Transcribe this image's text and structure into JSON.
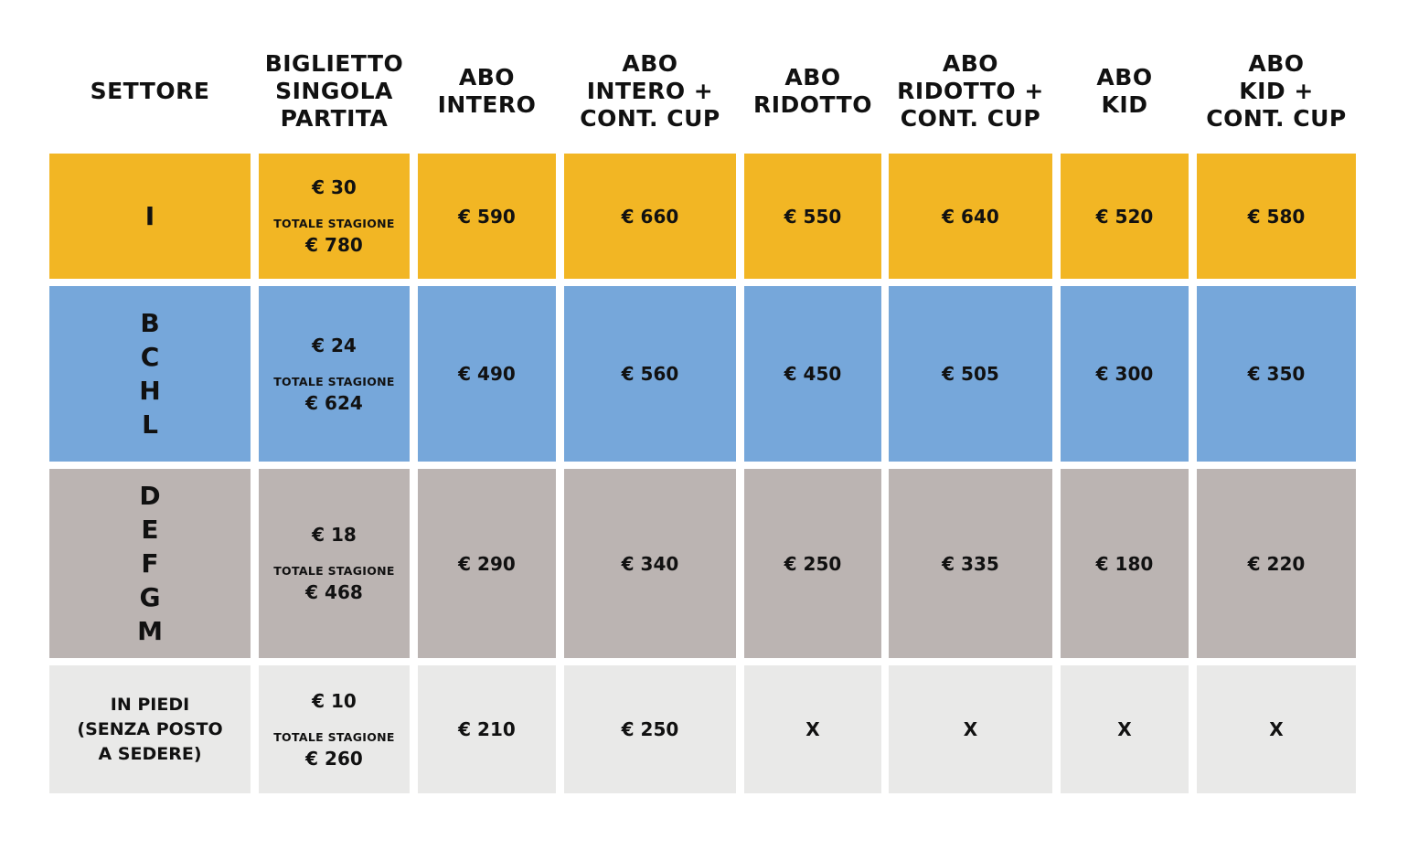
{
  "headers": [
    "SETTORE",
    "BIGLIETTO\nSINGOLA\nPARTITA",
    "ABO\nINTERO",
    "ABO\nINTERO +\nCONT. CUP",
    "ABO\nRIDOTTO",
    "ABO\nRIDOTTO +\nCONT. CUP",
    "ABO\nKID",
    "ABO\nKID +\nCONT. CUP"
  ],
  "season_label": "TOTALE STAGIONE",
  "colors": {
    "row1": "#F2B624",
    "row2": "#76A7DA",
    "row3": "#BBB4B2",
    "row4": "#E9E9E8",
    "text": "#111111",
    "separator": "#FFFFFF"
  },
  "rows": [
    {
      "sector": "I",
      "sector_style": "letters",
      "single": "€ 30",
      "season_total": "€ 780",
      "prices": [
        "€ 590",
        "€ 660",
        "€ 550",
        "€ 640",
        "€ 520",
        "€ 580"
      ]
    },
    {
      "sector": "B\nC\nH\nL",
      "sector_style": "letters",
      "single": "€ 24",
      "season_total": "€ 624",
      "prices": [
        "€ 490",
        "€ 560",
        "€ 450",
        "€ 505",
        "€ 300",
        "€ 350"
      ]
    },
    {
      "sector": "D\nE\nF\nG\nM",
      "sector_style": "letters",
      "single": "€ 18",
      "season_total": "€ 468",
      "prices": [
        "€ 290",
        "€ 340",
        "€ 250",
        "€ 335",
        "€ 180",
        "€ 220"
      ]
    },
    {
      "sector": "IN PIEDI\n(SENZA POSTO\nA SEDERE)",
      "sector_style": "text",
      "single": "€ 10",
      "season_total": "€ 260",
      "prices": [
        "€ 210",
        "€ 250",
        "X",
        "X",
        "X",
        "X"
      ]
    }
  ]
}
